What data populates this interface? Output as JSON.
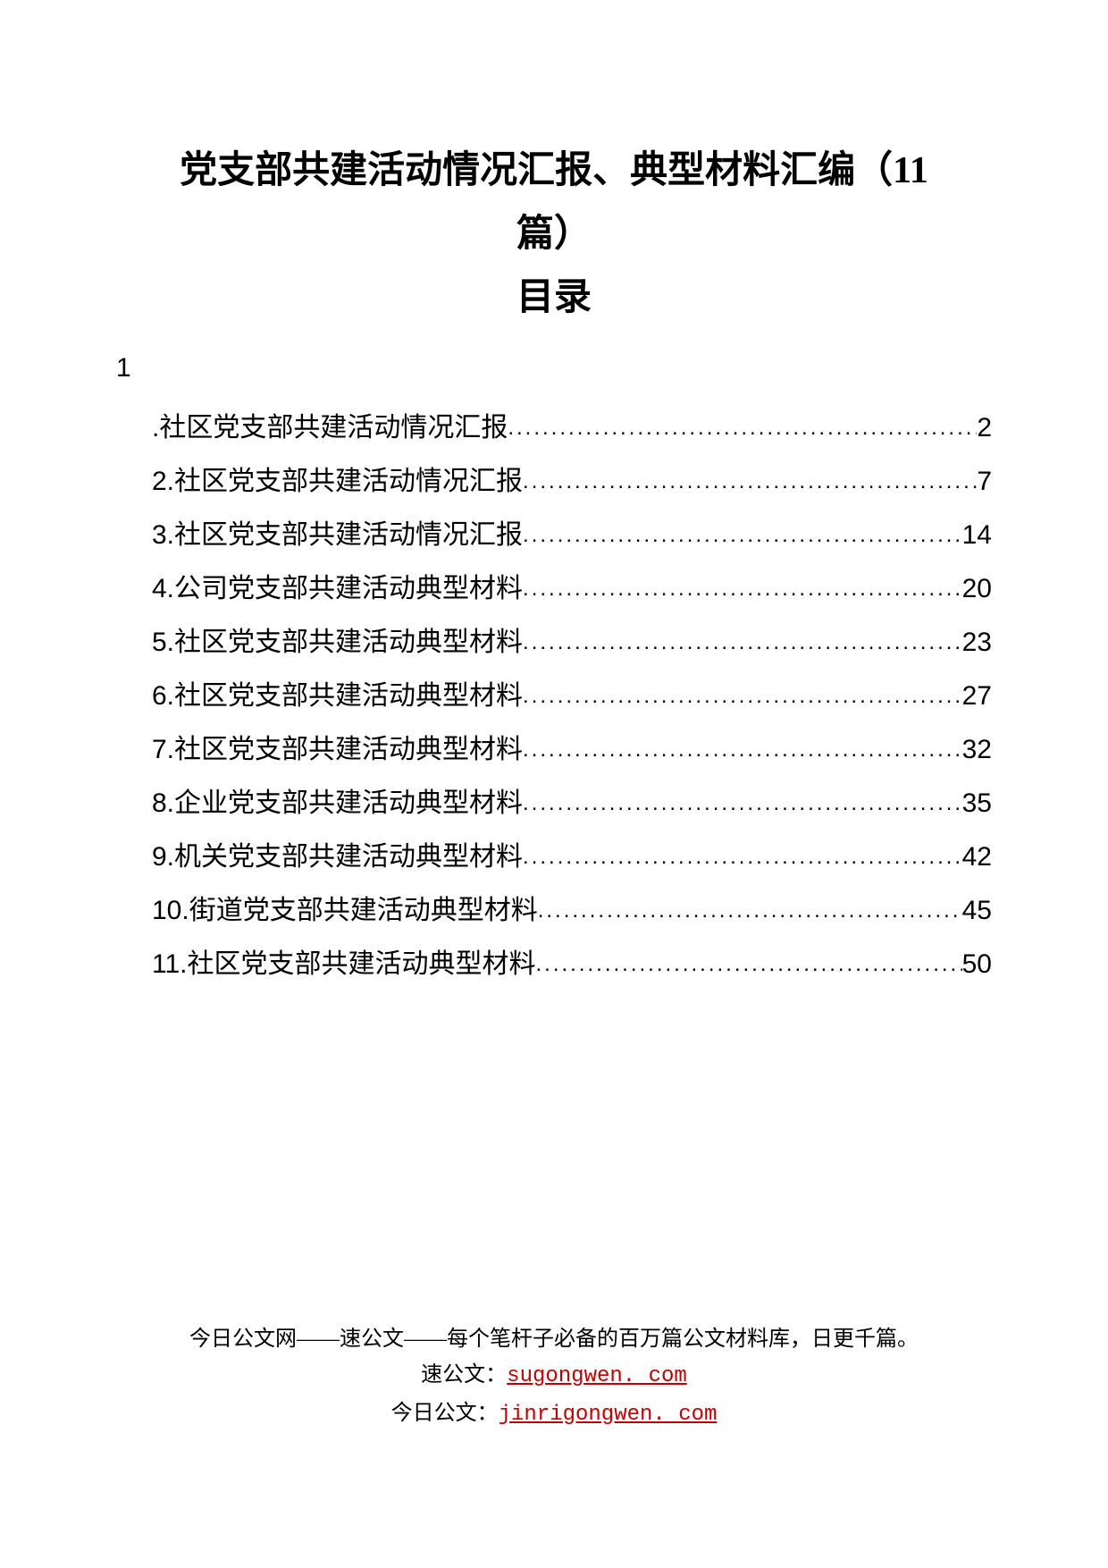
{
  "title": {
    "line1": "党支部共建活动情况汇报、典型材料汇编（11",
    "line2": "篇）",
    "heading": "目录"
  },
  "number_prefix": "1",
  "toc": {
    "items": [
      {
        "label": ".社区党支部共建活动情况汇报",
        "page": "2"
      },
      {
        "label": "2.社区党支部共建活动情况汇报",
        "page": "7"
      },
      {
        "label": "3.社区党支部共建活动情况汇报",
        "page": "14"
      },
      {
        "label": "4.公司党支部共建活动典型材料",
        "page": "20"
      },
      {
        "label": "5.社区党支部共建活动典型材料",
        "page": "23"
      },
      {
        "label": "6.社区党支部共建活动典型材料",
        "page": "27"
      },
      {
        "label": "7.社区党支部共建活动典型材料",
        "page": "32"
      },
      {
        "label": "8.企业党支部共建活动典型材料",
        "page": "35"
      },
      {
        "label": "9.机关党支部共建活动典型材料",
        "page": "42"
      },
      {
        "label": "10.街道党支部共建活动典型材料",
        "page": "45"
      },
      {
        "label": "11.社区党支部共建活动典型材料",
        "page": "50"
      }
    ]
  },
  "footer": {
    "line1": "今日公文网——速公文——每个笔杆子必备的百万篇公文材料库，日更千篇。",
    "line2_prefix": "速公文：",
    "line2_link": "sugongwen. com",
    "line3_prefix": "今日公文：",
    "line3_link": "jinrigongwen. com"
  }
}
